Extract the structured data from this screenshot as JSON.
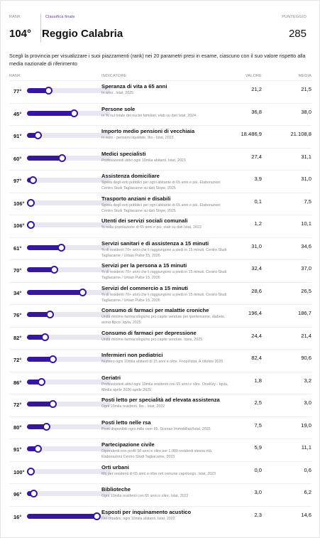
{
  "header": {
    "rank_label": "RANK",
    "tab_label": "Classifica finale",
    "score_label": "PUNTEGGIO",
    "rank": "104°",
    "province": "Reggio Calabria",
    "score": "285"
  },
  "intro": "Scegli la provincia per visualizzare i suoi piazzamenti (rank) nei 20 parametri presi in esame, ciascuno con il suo valore rispetto alla media nazionale di riferimento",
  "table": {
    "columns": [
      "RANK",
      "INDICATORE",
      "VALORE",
      "MEDIA"
    ],
    "rows": [
      {
        "rank": {
          "value": 77,
          "label": "77°"
        },
        "title": "Speranza di vita a 65 anni",
        "note": "In anni . Istat, 2025",
        "value": "21,2",
        "average": "21,5"
      },
      {
        "rank": {
          "value": 45,
          "label": "45°"
        },
        "title": "Persone sole",
        "note": "In % sul totale dei nuclei familiari. elab su dati Istat, 2024",
        "value": "36,8",
        "average": "38,0"
      },
      {
        "rank": {
          "value": 91,
          "label": "91°"
        },
        "title": "Importo medio pensioni di vecchiaia",
        "note": "In euro - pensioni liquidate. Ibs - Istat, 2023",
        "value": "18.486,9",
        "average": "21.108,8"
      },
      {
        "rank": {
          "value": 60,
          "label": "60°"
        },
        "title": "Medici specialisti",
        "note": "Professionisti attivi ogni 10mila abitanti. Istat, 2023",
        "value": "27,4",
        "average": "31,1"
      },
      {
        "rank": {
          "value": 97,
          "label": "97°"
        },
        "title": "Assistenza domiciliare",
        "note": "Spesa degli enti pubblici per ogni abitante di 65 anni e più. Elaborazioni Centro Studi Tagliacarne su dati Siope, 2025",
        "value": "3,9",
        "average": "31,0"
      },
      {
        "rank": {
          "value": 106,
          "label": "106°"
        },
        "title": "Trasporto anziani e disabili",
        "note": "Spesa degli enti pubblici per ogni abitante di 65 anni e più. Elaborazioni Centro Studi Tagliacarne su dati Siope, 2025",
        "value": "0,1",
        "average": "7,5"
      },
      {
        "rank": {
          "value": 106,
          "label": "106°"
        },
        "title": "Utenti dei servizi sociali comunali",
        "note": "% sulla popolazione di 65 anni e più. elab su dati Istat, 2022",
        "value": "1,2",
        "average": "10,1"
      },
      {
        "rank": {
          "value": 61,
          "label": "61°"
        },
        "title": "Servizi sanitari e di assistenza a 15 minuti",
        "note": "% di residenti 70+ anni che li raggiungono a piedi in 15 minuti. Centro Studi Tagliacarne / Urban Pulse 15, 2026",
        "value": "31,0",
        "average": "34,6"
      },
      {
        "rank": {
          "value": 70,
          "label": "70°"
        },
        "title": "Servizi per la persona a 15 minuti",
        "note": "% di residenti 70+ anni che li raggiungono a piedi in 15 minuti. Centro Studi Tagliacarne / Urban Pulse 15, 2026",
        "value": "32,4",
        "average": "37,0"
      },
      {
        "rank": {
          "value": 34,
          "label": "34°"
        },
        "title": "Servizi del commercio a 15 minuti",
        "note": "% di residenti 70+ anni che li raggiungono a piedi in 15 minuti. Centro Studi Tagliacarne / Urban Pulse 15, 2026",
        "value": "28,6",
        "average": "26,5"
      },
      {
        "rank": {
          "value": 76,
          "label": "76°"
        },
        "title": "Consumo di farmaci per malattie croniche",
        "note": "Unità minime farmacologiche pro capite vendute per ipertensione, diabete, asma-Bpco. Iqvia, 2025",
        "value": "196,4",
        "average": "186,7"
      },
      {
        "rank": {
          "value": 82,
          "label": "82°"
        },
        "title": "Consumo di farmaci per depressione",
        "note": "Unità minime farmacologiche pro capite vendute. Iqvia, 2025",
        "value": "24,4",
        "average": "21,4"
      },
      {
        "rank": {
          "value": 72,
          "label": "72°"
        },
        "title": "Infermieri non pediatrici",
        "note": "Numero ogni 10mila abitanti di 15 anni e oltre. Fnopi/Istat, A ottobre 2025",
        "value": "82,4",
        "average": "90,6"
      },
      {
        "rank": {
          "value": 86,
          "label": "86°"
        },
        "title": "Geriatri",
        "note": "Professionisti attivi ogni 10mila residenti con 65 anni e oltre. OneKey - Iqvia, Media aprile 2026-aprile 2025",
        "value": "1,8",
        "average": "3,2"
      },
      {
        "rank": {
          "value": 72,
          "label": "72°"
        },
        "title": "Posti letto per specialità ad elevata assistenza",
        "note": "Ogni 10mila residenti. Ibs - Istat, 2022",
        "value": "2,5",
        "average": "3,0"
      },
      {
        "rank": {
          "value": 80,
          "label": "80°"
        },
        "title": "Posti letto nelle rsa",
        "note": "Posti disponibili ogni mille over 65. Scenari Immobiliari/Istat, 2025",
        "value": "7,5",
        "average": "19,0"
      },
      {
        "rank": {
          "value": 91,
          "label": "91°"
        },
        "title": "Partecipazione civile",
        "note": "Dipendenti non profit 50 anni e oltre per 1.000 residenti stessa età. Elaborazioni Centro Studi Tagliacarne, 2023",
        "value": "5,9",
        "average": "11,1"
      },
      {
        "rank": {
          "value": 100,
          "label": "100°"
        },
        "title": "Orti urbani",
        "note": "Mq per residenti di 65 anni e oltre nel comune capoluogo. Istat, 2023",
        "value": "0,0",
        "average": "0,6"
      },
      {
        "rank": {
          "value": 96,
          "label": "96°"
        },
        "title": "Biblioteche",
        "note": "Ogni 10mila residenti con 65 anni e oltre. Istat, 2022",
        "value": "3,0",
        "average": "6,2"
      },
      {
        "rank": {
          "value": 16,
          "label": "16°"
        },
        "title": "Esposti per inquinamento acustico",
        "note": "Dei cittadini, ogni 10mila abitanti. Istat, 2022",
        "value": "2,3",
        "average": "14,6"
      }
    ]
  }
}
